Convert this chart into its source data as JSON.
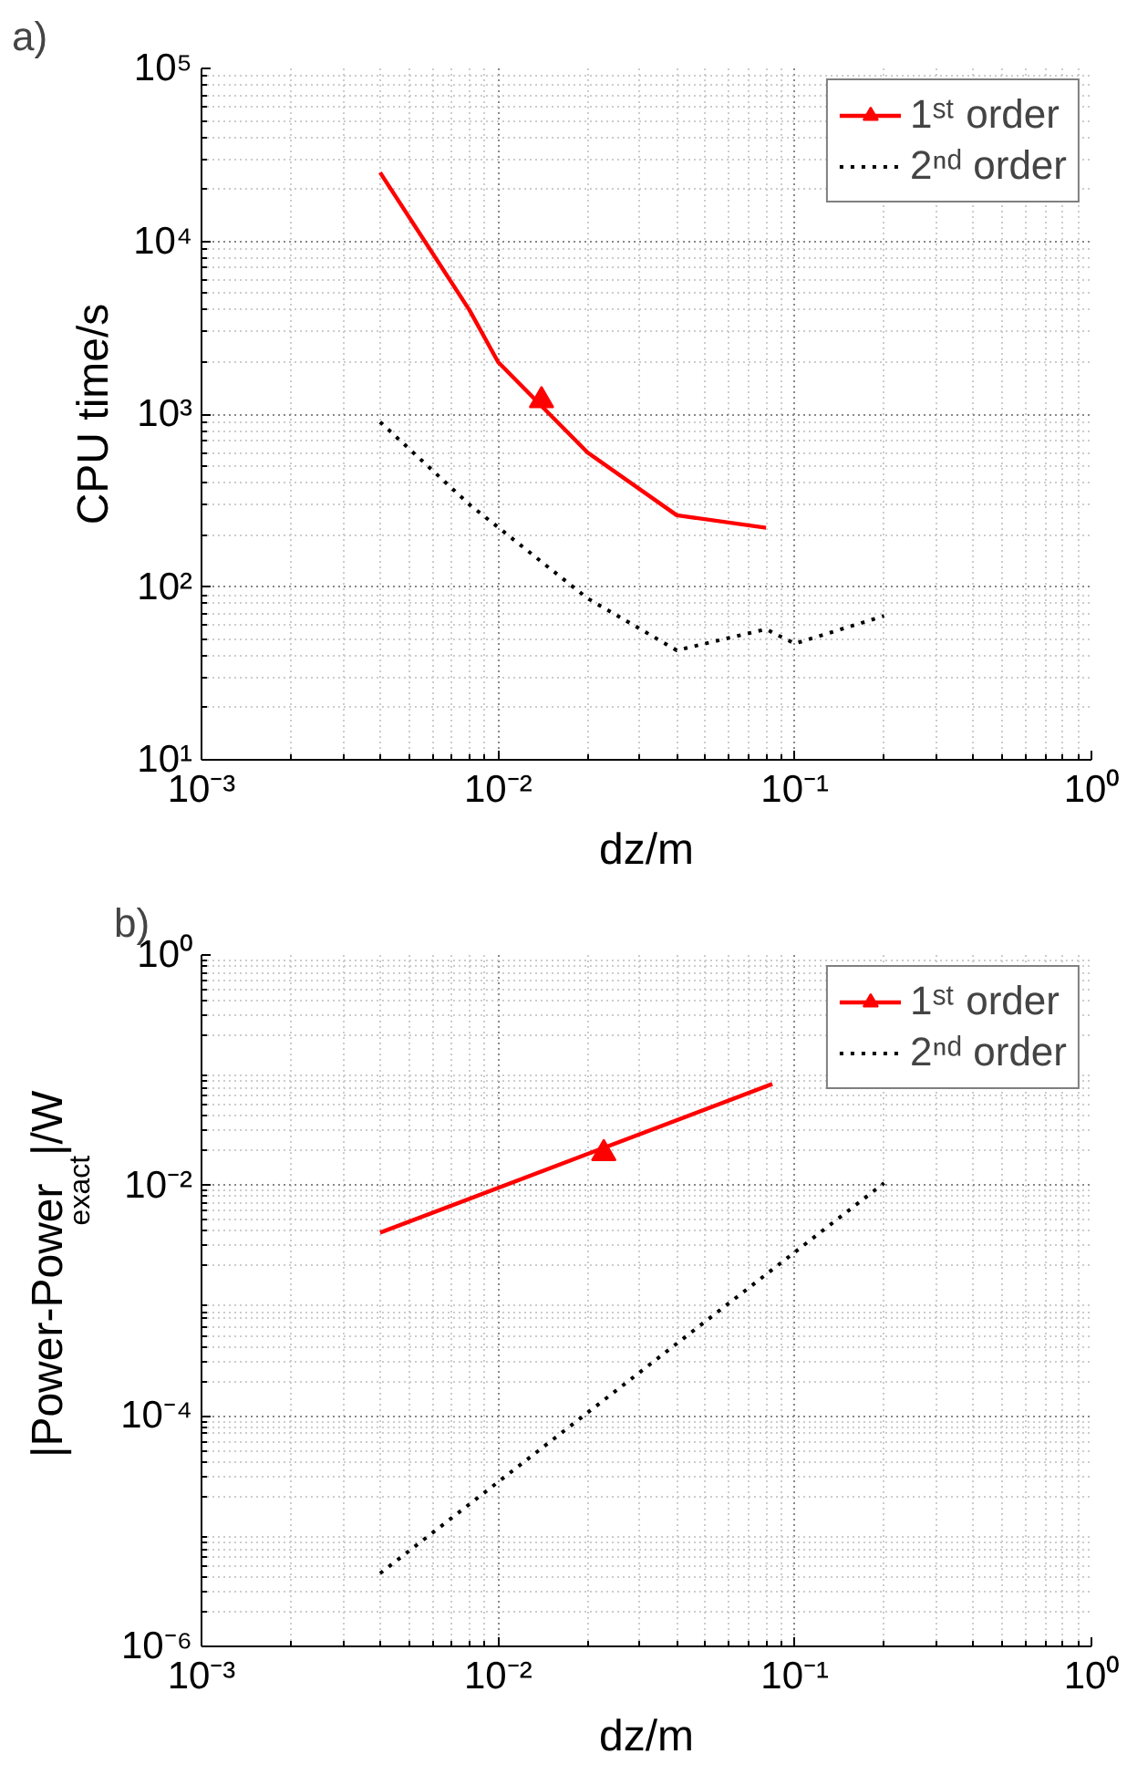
{
  "chart_data": [
    {
      "type": "line",
      "title": "a)",
      "xlabel": "dz/m",
      "ylabel": "CPU time/s",
      "log": "xy",
      "grid": true,
      "legend": "top right",
      "xlim": [
        0.001,
        1
      ],
      "ylim": [
        10,
        100000
      ],
      "xticks": [
        {
          "value": 0.001,
          "label": "10⁻³"
        },
        {
          "value": 0.01,
          "label": "10⁻²"
        },
        {
          "value": 0.1,
          "label": "10⁻¹"
        },
        {
          "value": 1,
          "label": "10⁰"
        }
      ],
      "yticks": [
        {
          "value": 10,
          "label": "10¹"
        },
        {
          "value": 100,
          "label": "10²"
        },
        {
          "value": 1000,
          "label": "10³"
        },
        {
          "value": 10000,
          "label": "10⁴"
        },
        {
          "value": 100000,
          "label": "10⁵"
        }
      ],
      "series": [
        {
          "name": "1ˢᵗ order",
          "color": "#ff0000",
          "line_style": "solid",
          "x": [
            0.004,
            0.008,
            0.01,
            0.02,
            0.04,
            0.08
          ],
          "values": [
            25000,
            4000,
            2000,
            600,
            260,
            220
          ]
        },
        {
          "type": "scatter",
          "marker": "triangle",
          "color": "#ff0000",
          "x": [
            0.014
          ],
          "values": [
            1200
          ]
        },
        {
          "name": "2ⁿᵈ order",
          "color": "#000000",
          "line_style": "dotted",
          "x": [
            0.004,
            0.008,
            0.02,
            0.04,
            0.08,
            0.1,
            0.2
          ],
          "values": [
            900,
            300,
            86,
            43,
            57,
            47,
            68
          ]
        }
      ]
    },
    {
      "type": "line",
      "title": "b)",
      "xlabel": "dz/m",
      "ylabel": "|Power-Power$_{exact}$|/W",
      "log": "xy",
      "grid": true,
      "legend": "top right",
      "xlim": [
        0.001,
        1
      ],
      "ylim": [
        1e-06,
        1
      ],
      "xticks": [
        {
          "value": 0.001,
          "label": "10⁻³"
        },
        {
          "value": 0.01,
          "label": "10⁻²"
        },
        {
          "value": 0.1,
          "label": "10⁻¹"
        },
        {
          "value": 1,
          "label": "10⁰"
        }
      ],
      "yticks": [
        {
          "value": 1e-06,
          "label": "10⁻⁶"
        },
        {
          "value": 0.0001,
          "label": "10⁻⁴"
        },
        {
          "value": 0.01,
          "label": "10⁻²"
        },
        {
          "value": 1,
          "label": "10⁰"
        }
      ],
      "series": [
        {
          "name": "1ˢᵗ order",
          "color": "#ff0000",
          "line_style": "solid",
          "x": [
            0.004,
            0.084
          ],
          "values": [
            0.0039,
            0.076
          ]
        },
        {
          "type": "scatter",
          "marker": "triangle",
          "color": "#ff0000",
          "x": [
            0.0227
          ],
          "values": [
            0.019
          ]
        },
        {
          "name": "2ⁿᵈ order",
          "color": "#000000",
          "line_style": "dotted",
          "x": [
            0.004,
            0.2
          ],
          "values": [
            4.3e-06,
            0.0105
          ]
        }
      ]
    }
  ]
}
